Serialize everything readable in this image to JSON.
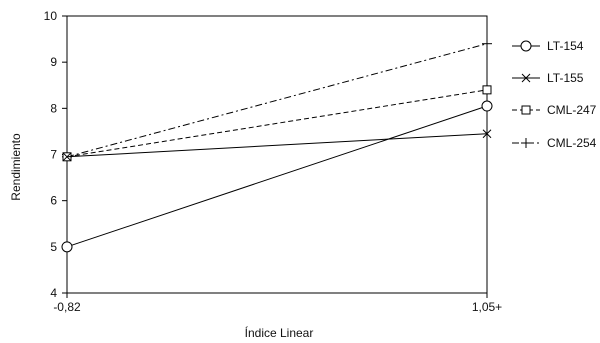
{
  "chart_data": {
    "type": "line",
    "title": "",
    "xlabel": "Índice Linear",
    "ylabel": "Rendimiento",
    "categories": [
      "-0,82",
      "1,05+"
    ],
    "ylim": [
      4,
      10
    ],
    "yticks": [
      "4",
      "5",
      "6",
      "7",
      "8",
      "9",
      "10"
    ],
    "grid": false,
    "legend_position": "right",
    "series": [
      {
        "name": "LT-154",
        "values": [
          5.0,
          8.05
        ],
        "marker": "circle",
        "dash": "solid"
      },
      {
        "name": "LT-155",
        "values": [
          6.95,
          7.45
        ],
        "marker": "x",
        "dash": "solid"
      },
      {
        "name": "CML-247",
        "values": [
          6.95,
          8.4
        ],
        "marker": "square",
        "dash": "dashed"
      },
      {
        "name": "CML-254",
        "values": [
          6.95,
          9.4
        ],
        "marker": "plus",
        "dash": "dashdot"
      }
    ]
  }
}
